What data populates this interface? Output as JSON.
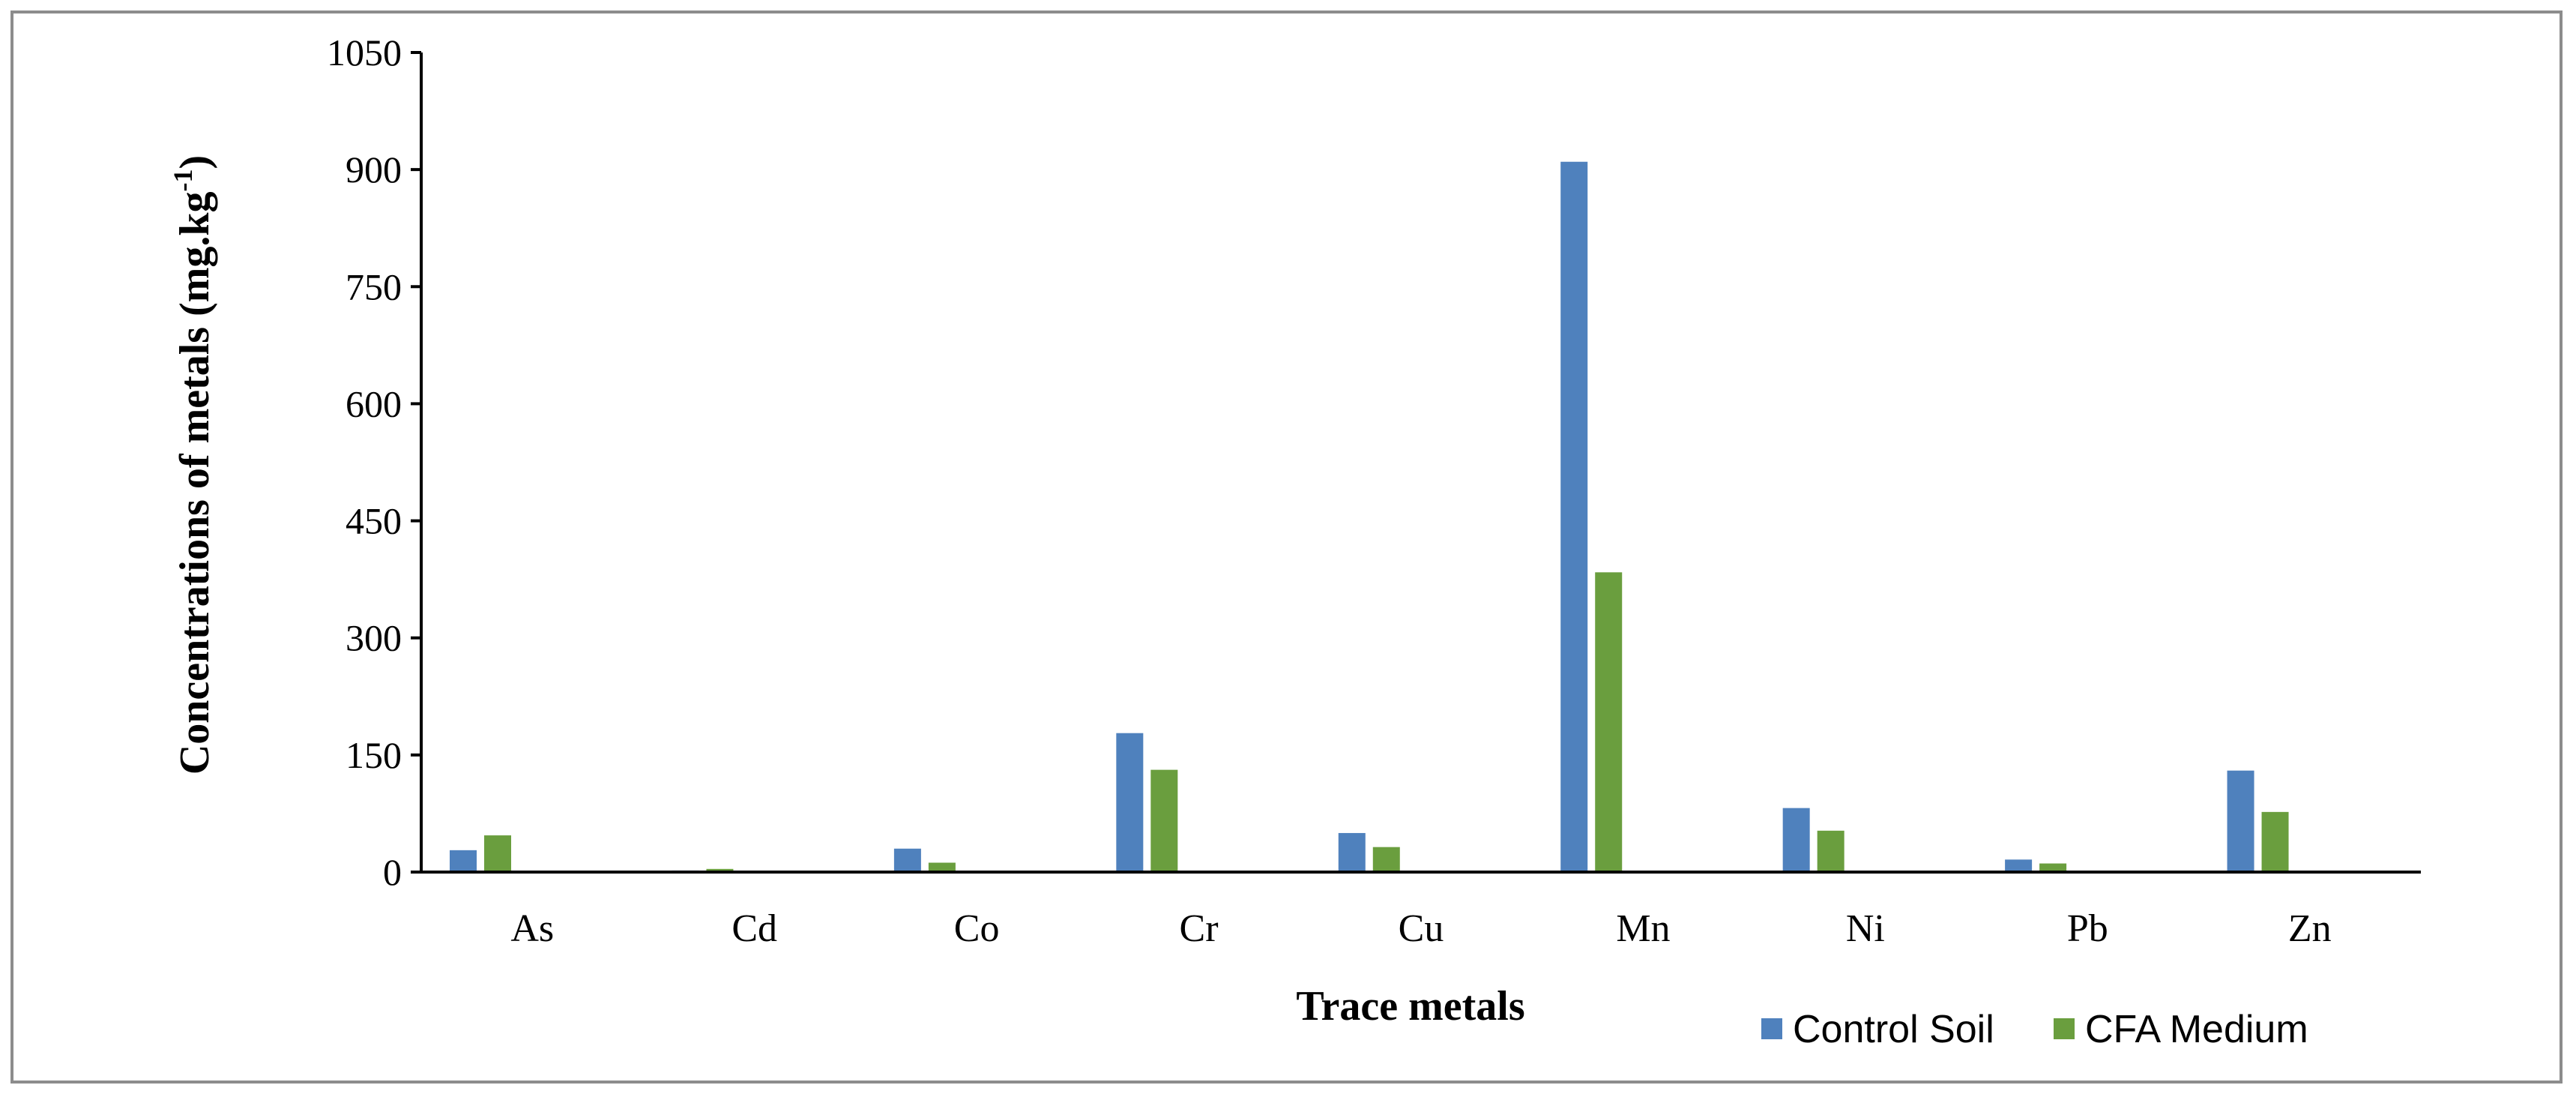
{
  "chart_data": {
    "type": "bar",
    "categories": [
      "As",
      "Cd",
      "Co",
      "Cr",
      "Cu",
      "Mn",
      "Ni",
      "Pb",
      "Zn"
    ],
    "series": [
      {
        "name": "Control Soil",
        "color": "#4f81bd",
        "values": [
          28,
          2,
          30,
          178,
          50,
          910,
          82,
          16,
          130
        ]
      },
      {
        "name": "CFA Medium",
        "color": "#6a9e3e",
        "values": [
          47,
          4,
          12,
          131,
          32,
          384,
          53,
          11,
          77
        ]
      }
    ],
    "xlabel": "Trace metals",
    "ylabel": "Concentrations of metals (mg.kg",
    "ylabel_sup": "-1",
    "ylabel_close": ")",
    "ylim": [
      0,
      1050
    ],
    "yticks": [
      0,
      150,
      300,
      450,
      600,
      750,
      900,
      1050
    ],
    "grid": false,
    "legend": "bottom-right"
  }
}
